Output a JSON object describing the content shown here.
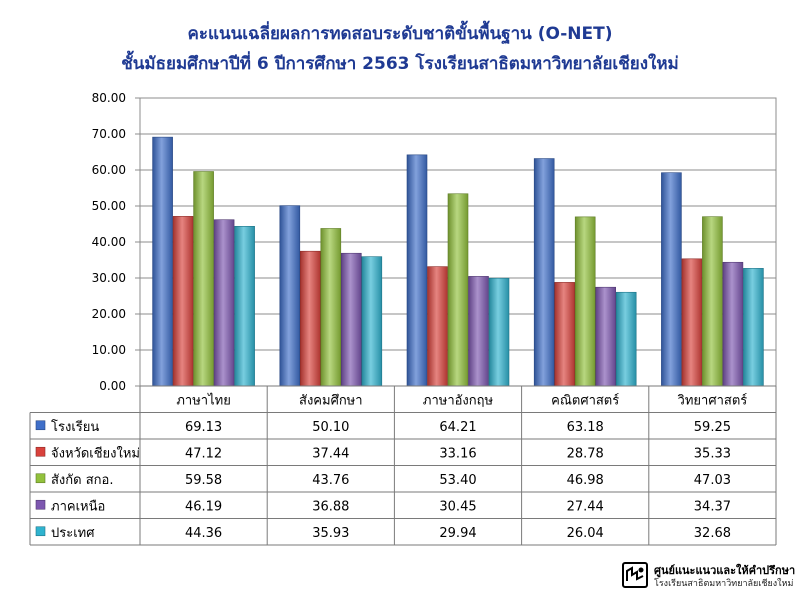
{
  "chart_data": {
    "type": "bar",
    "title": "คะแนนเฉลี่ยผลการทดสอบระดับชาติขั้นพื้นฐาน (O-NET)",
    "subtitle": "ชั้นมัธยมศึกษาปีที่ 6 ปีการศึกษา 2563 โรงเรียนสาธิตมหาวิทยาลัยเชียงใหม่",
    "categories": [
      "ภาษาไทย",
      "สังคมศึกษา",
      "ภาษาอังกฤษ",
      "คณิตศาสตร์",
      "วิทยาศาสตร์"
    ],
    "ylim": [
      0,
      80
    ],
    "yticks": [
      "0.00",
      "10.00",
      "20.00",
      "30.00",
      "40.00",
      "50.00",
      "60.00",
      "70.00",
      "80.00"
    ],
    "grid": true,
    "legend": "data-table",
    "series": [
      {
        "name": "โรงเรียน",
        "color": "#3f6fc9",
        "values": [
          69.13,
          50.1,
          64.21,
          63.18,
          59.25
        ],
        "labels": [
          "69.13",
          "50.10",
          "64.21",
          "63.18",
          "59.25"
        ]
      },
      {
        "name": "จังหวัดเชียงใหม่",
        "color": "#d9423c",
        "values": [
          47.12,
          37.44,
          33.16,
          28.78,
          35.33
        ],
        "labels": [
          "47.12",
          "37.44",
          "33.16",
          "28.78",
          "35.33"
        ]
      },
      {
        "name": "สังกัด สกอ.",
        "color": "#92c13c",
        "values": [
          59.58,
          43.76,
          53.4,
          46.98,
          47.03
        ],
        "labels": [
          "59.58",
          "43.76",
          "53.40",
          "46.98",
          "47.03"
        ]
      },
      {
        "name": "ภาคเหนือ",
        "color": "#7d57b0",
        "values": [
          46.19,
          36.88,
          30.45,
          27.44,
          34.37
        ],
        "labels": [
          "46.19",
          "36.88",
          "30.45",
          "27.44",
          "34.37"
        ]
      },
      {
        "name": "ประเทศ",
        "color": "#2fb3cf",
        "values": [
          44.36,
          35.93,
          29.94,
          26.04,
          32.68
        ],
        "labels": [
          "44.36",
          "35.93",
          "29.94",
          "26.04",
          "32.68"
        ]
      }
    ]
  },
  "logo": {
    "line1": "ศูนย์แนะแนวและให้คำปรึกษา",
    "line2": "โรงเรียนสาธิตมหาวิทยาลัยเชียงใหม่"
  }
}
